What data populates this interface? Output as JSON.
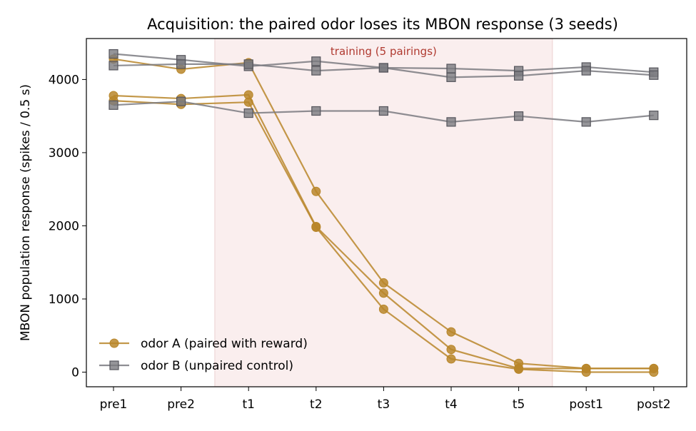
{
  "chart_data": {
    "type": "line",
    "title": "Acquisition: the paired odor loses its MBON response (3 seeds)",
    "xlabel": "",
    "ylabel": "MBON population response (spikes / 0.5 s)",
    "categories": [
      "pre1",
      "pre2",
      "t1",
      "t2",
      "t3",
      "t4",
      "t5",
      "post1",
      "post2"
    ],
    "ylim": [
      -200,
      4560
    ],
    "yticks": [
      0,
      1000,
      2000,
      3000,
      4000
    ],
    "grid": false,
    "legend_position": "lower-left",
    "shaded_region": {
      "from_category": "t1",
      "to_category": "t5",
      "label": "training (5 pairings)",
      "color": "#f6e2e2",
      "label_color": "#b03a30"
    },
    "legend": [
      {
        "label": "odor A (paired with reward)",
        "color": "#b8862a",
        "marker": "circle"
      },
      {
        "label": "odor B (unpaired control)",
        "color": "#7a7a80",
        "marker": "square"
      }
    ],
    "series": [
      {
        "group": "odor A",
        "color": "#b8862a",
        "marker": "circle",
        "values": [
          4280,
          4140,
          4230,
          2470,
          1220,
          550,
          120,
          50,
          50
        ]
      },
      {
        "group": "odor A",
        "color": "#b8862a",
        "marker": "circle",
        "values": [
          3780,
          3740,
          3790,
          1990,
          1080,
          310,
          50,
          50,
          50
        ]
      },
      {
        "group": "odor A",
        "color": "#b8862a",
        "marker": "circle",
        "values": [
          3710,
          3660,
          3690,
          1980,
          860,
          180,
          40,
          0,
          0
        ]
      },
      {
        "group": "odor B",
        "color": "#7a7a80",
        "marker": "square",
        "values": [
          4350,
          4270,
          4180,
          4250,
          4160,
          4150,
          4120,
          4170,
          4100
        ]
      },
      {
        "group": "odor B",
        "color": "#7a7a80",
        "marker": "square",
        "values": [
          4190,
          4210,
          4210,
          4120,
          4160,
          4030,
          4050,
          4120,
          4060
        ]
      },
      {
        "group": "odor B",
        "color": "#7a7a80",
        "marker": "square",
        "values": [
          3650,
          3700,
          3540,
          3570,
          3570,
          3420,
          3500,
          3420,
          3510
        ]
      }
    ]
  }
}
